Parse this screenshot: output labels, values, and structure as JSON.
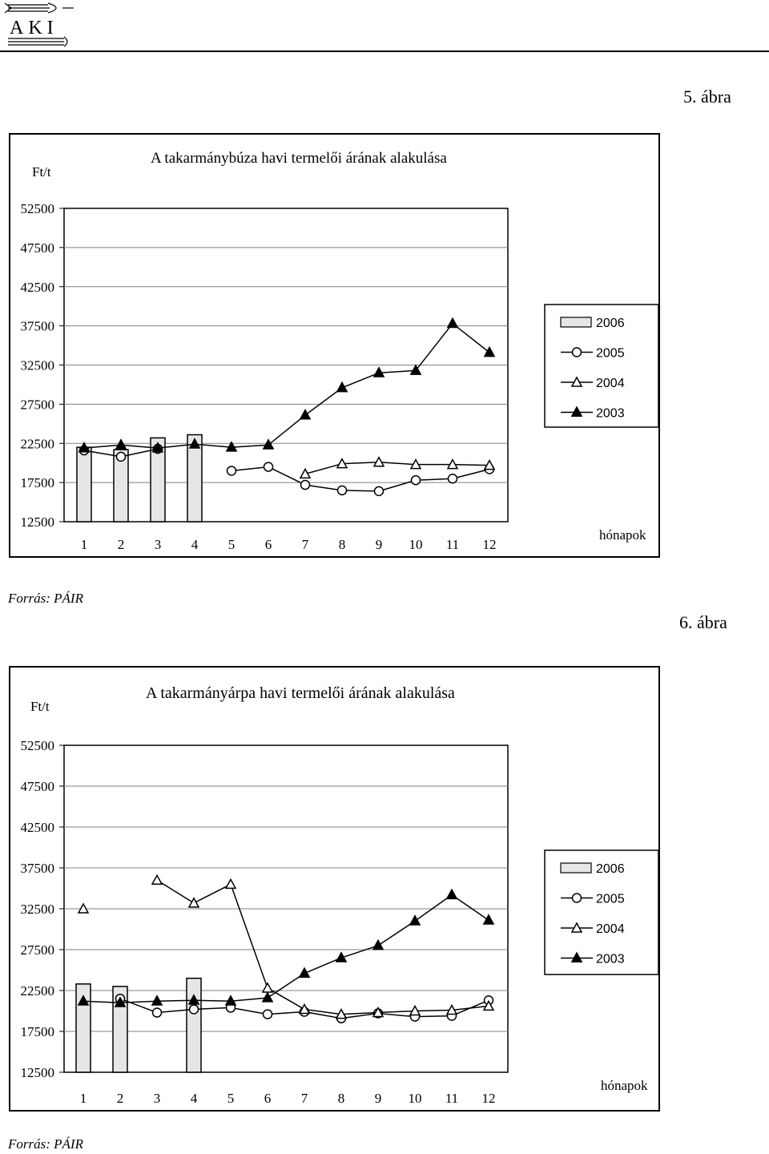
{
  "header": {
    "logo_text": "AKI"
  },
  "figure1": {
    "label": "5. ábra",
    "source": "Forrás: PÁIR"
  },
  "figure2": {
    "label": "6. ábra",
    "source": "Forrás: PÁIR"
  },
  "chart_data": [
    {
      "type": "line",
      "title": "A takarmánybúza havi termelői árának alakulása",
      "ylabel": "Ft/t",
      "xlabel": "hónapok",
      "ylim": [
        12500,
        52500
      ],
      "yticks": [
        "52500",
        "47500",
        "42500",
        "37500",
        "32500",
        "27500",
        "22500",
        "17500",
        "12500"
      ],
      "categories": [
        "1",
        "2",
        "3",
        "4",
        "5",
        "6",
        "7",
        "8",
        "9",
        "10",
        "11",
        "12"
      ],
      "legend_position": "right",
      "series": [
        {
          "name": "2006",
          "kind": "bar",
          "values": [
            22000,
            21700,
            23200,
            23600,
            null,
            null,
            null,
            null,
            null,
            null,
            null,
            null
          ]
        },
        {
          "name": "2005",
          "kind": "line",
          "marker": "circle-open",
          "values": [
            21600,
            20800,
            21800,
            null,
            19000,
            19500,
            17200,
            16500,
            16400,
            17800,
            18000,
            19200
          ]
        },
        {
          "name": "2004",
          "kind": "line",
          "marker": "triangle-open",
          "values": [
            null,
            null,
            null,
            null,
            null,
            null,
            18600,
            19900,
            20100,
            19800,
            19800,
            19700
          ]
        },
        {
          "name": "2003",
          "kind": "line",
          "marker": "triangle-filled",
          "values": [
            21900,
            22300,
            21900,
            22400,
            22000,
            22300,
            26100,
            29600,
            31500,
            31800,
            37800,
            34100
          ]
        }
      ]
    },
    {
      "type": "line",
      "title": "A takarmányárpa havi termelői árának alakulása",
      "ylabel": "Ft/t",
      "xlabel": "hónapok",
      "ylim": [
        12500,
        52500
      ],
      "yticks": [
        "52500",
        "47500",
        "42500",
        "37500",
        "32500",
        "27500",
        "22500",
        "17500",
        "12500"
      ],
      "categories": [
        "1",
        "2",
        "3",
        "4",
        "5",
        "6",
        "7",
        "8",
        "9",
        "10",
        "11",
        "12"
      ],
      "legend_position": "right",
      "series": [
        {
          "name": "2006",
          "kind": "bar",
          "values": [
            23300,
            23000,
            null,
            24000,
            null,
            null,
            null,
            null,
            null,
            null,
            null,
            null
          ]
        },
        {
          "name": "2005",
          "kind": "line",
          "marker": "circle-open",
          "values": [
            null,
            21500,
            19800,
            20200,
            20400,
            19600,
            19900,
            19100,
            19700,
            19300,
            19400,
            21300
          ]
        },
        {
          "name": "2004",
          "kind": "line",
          "marker": "triangle-open",
          "values": [
            32500,
            null,
            36000,
            33200,
            35500,
            22800,
            20200,
            19600,
            19800,
            20000,
            20100,
            20600
          ]
        },
        {
          "name": "2003",
          "kind": "line",
          "marker": "triangle-filled",
          "values": [
            21200,
            21000,
            21200,
            21300,
            21200,
            21600,
            24600,
            26500,
            28000,
            31000,
            34200,
            31100
          ]
        }
      ]
    }
  ],
  "colors": {
    "axis": "#000000",
    "grid": "#808080",
    "bar_fill": "#e6e6e6",
    "background": "#ffffff"
  }
}
